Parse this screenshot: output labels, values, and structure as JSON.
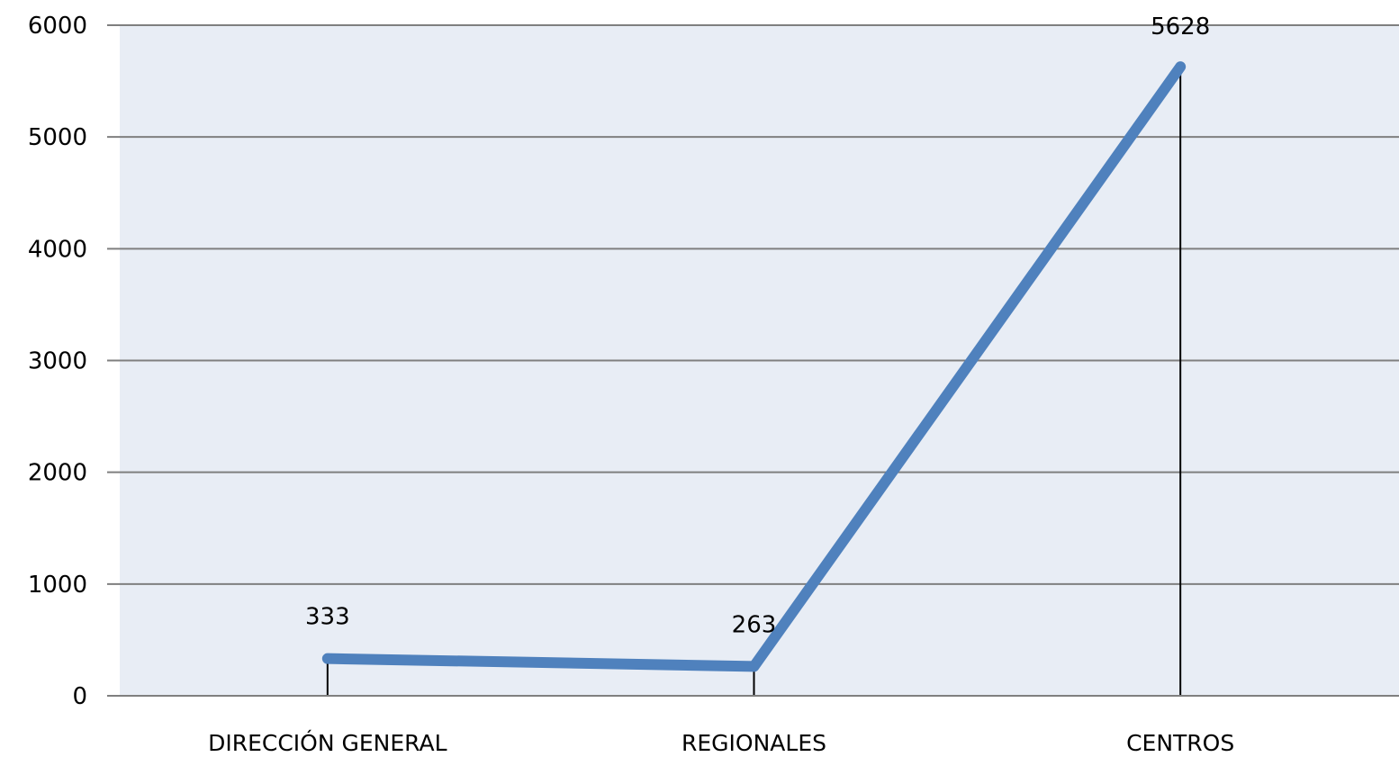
{
  "chart_data": {
    "type": "line",
    "categories": [
      "DIRECCIÓN GENERAL",
      "REGIONALES",
      "CENTROS"
    ],
    "values": [
      333,
      263,
      5628
    ],
    "data_labels": [
      "333",
      "263",
      "5628"
    ],
    "y_ticks": [
      "0",
      "1000",
      "2000",
      "3000",
      "4000",
      "5000",
      "6000"
    ],
    "ylim": [
      0,
      6000
    ],
    "grid": true,
    "legend": "none",
    "colors": {
      "line": "#4f81bd",
      "plot_background": "#e8edf5",
      "gridline": "#7f7f7f",
      "drop_line": "#000000"
    }
  }
}
